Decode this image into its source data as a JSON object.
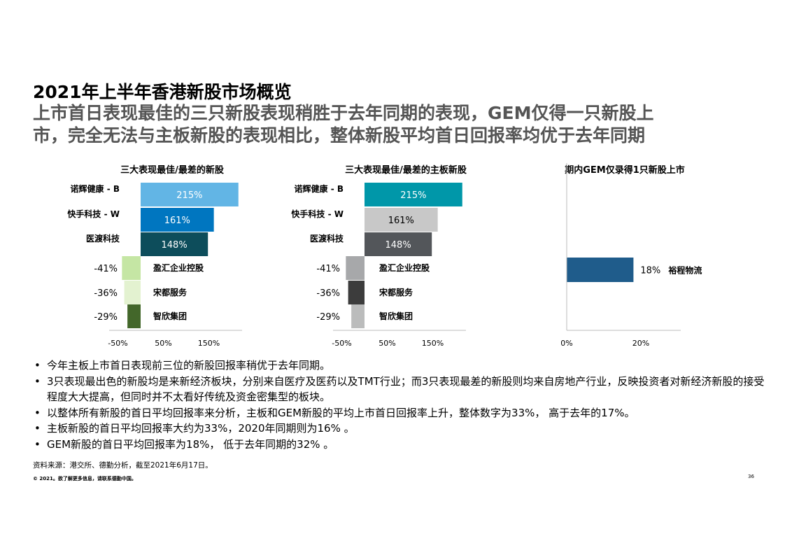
{
  "header": {
    "title": "2021年上半年香港新股市场概览",
    "subtitle_line1": "上市首日表现最佳的三只新股表现稍胜于去年同期的表现，GEM仅得一只新股上",
    "subtitle_line2": "市，完全无法与主板新股的表现相比，整体新股平均首日回报率均优于去年同期"
  },
  "chart_data": [
    {
      "type": "bar",
      "orientation": "horizontal",
      "title": "三大表现最佳/最差的新股",
      "categories": [
        "诺辉健康 - B",
        "快手科技 - W",
        "医渡科技",
        "盈汇企业控股",
        "宋都服务",
        "智欣集团"
      ],
      "values": [
        215,
        161,
        148,
        -41,
        -36,
        -29
      ],
      "value_labels": [
        "215%",
        "161%",
        "148%",
        "-41%",
        "-36%",
        "-29%"
      ],
      "colors": [
        "#62b5e5",
        "#0076c0",
        "#0d4d5b",
        "#c5e6a4",
        "#e3f2d0",
        "#43672a"
      ],
      "label_colors": [
        "#ffffff",
        "#ffffff",
        "#ffffff",
        "#000000",
        "#000000",
        "#000000"
      ],
      "x_ticks": [
        "-50%",
        "50%",
        "150%"
      ],
      "x_tick_values": [
        -50,
        50,
        150
      ],
      "xlim": [
        -50,
        215
      ],
      "xlabel": "",
      "ylabel": ""
    },
    {
      "type": "bar",
      "orientation": "horizontal",
      "title": "三大表现最佳/最差的主板新股",
      "categories": [
        "诺辉健康 - B",
        "快手科技 - W",
        "医渡科技",
        "盈汇企业控股",
        "宋都服务",
        "智欣集团"
      ],
      "values": [
        215,
        161,
        148,
        -41,
        -36,
        -29
      ],
      "value_labels": [
        "215%",
        "161%",
        "148%",
        "-41%",
        "-36%",
        "-29%"
      ],
      "colors": [
        "#0097a9",
        "#c8c8c8",
        "#53565a",
        "#a7a8aa",
        "#3c3c3c",
        "#bbbcbc"
      ],
      "label_colors": [
        "#ffffff",
        "#000000",
        "#ffffff",
        "#000000",
        "#000000",
        "#000000"
      ],
      "x_ticks": [
        "-50%",
        "50%",
        "150%"
      ],
      "x_tick_values": [
        -50,
        50,
        150
      ],
      "xlim": [
        -50,
        215
      ],
      "xlabel": "",
      "ylabel": ""
    },
    {
      "type": "bar",
      "orientation": "horizontal",
      "title": "期内GEM仅录得1只新股上市",
      "categories": [
        "裕程物流"
      ],
      "values": [
        18
      ],
      "value_labels": [
        "18%"
      ],
      "colors": [
        "#1f5c8b"
      ],
      "label_colors": [
        "#000000"
      ],
      "x_ticks": [
        "0%",
        "20%"
      ],
      "x_tick_values": [
        0,
        20
      ],
      "xlim": [
        0,
        32
      ],
      "xlabel": "",
      "ylabel": ""
    }
  ],
  "bullets": [
    "今年主板上市首日表现前三位的新股回报率稍优于去年同期。",
    "3只表现最出色的新股均是来新经济板块，分别来自医疗及医药以及TMT行业；而3只表现最差的新股则均来自房地产行业，反映投资者对新经济新股的接受程度大大提高，但同时并不太看好传统及资金密集型的板块。",
    "以整体所有新股的首日平均回报率来分析，主板和GEM新股的平均上市首日回报率上升，整体数字为33%， 高于去年的17%。",
    "主板新股的首日平均回报率大约为33%，2020年同期则为16% 。",
    "GEM新股的首日平均回报率为18%， 低于去年同期的32% 。"
  ],
  "bullet_symbol": "•",
  "footer": {
    "source": "资料来源：港交所、德勤分析，截至2021年6月17日。",
    "copyright": "© 2021。欲了解更多信息，请联系德勤中国。",
    "page_number": "36"
  }
}
